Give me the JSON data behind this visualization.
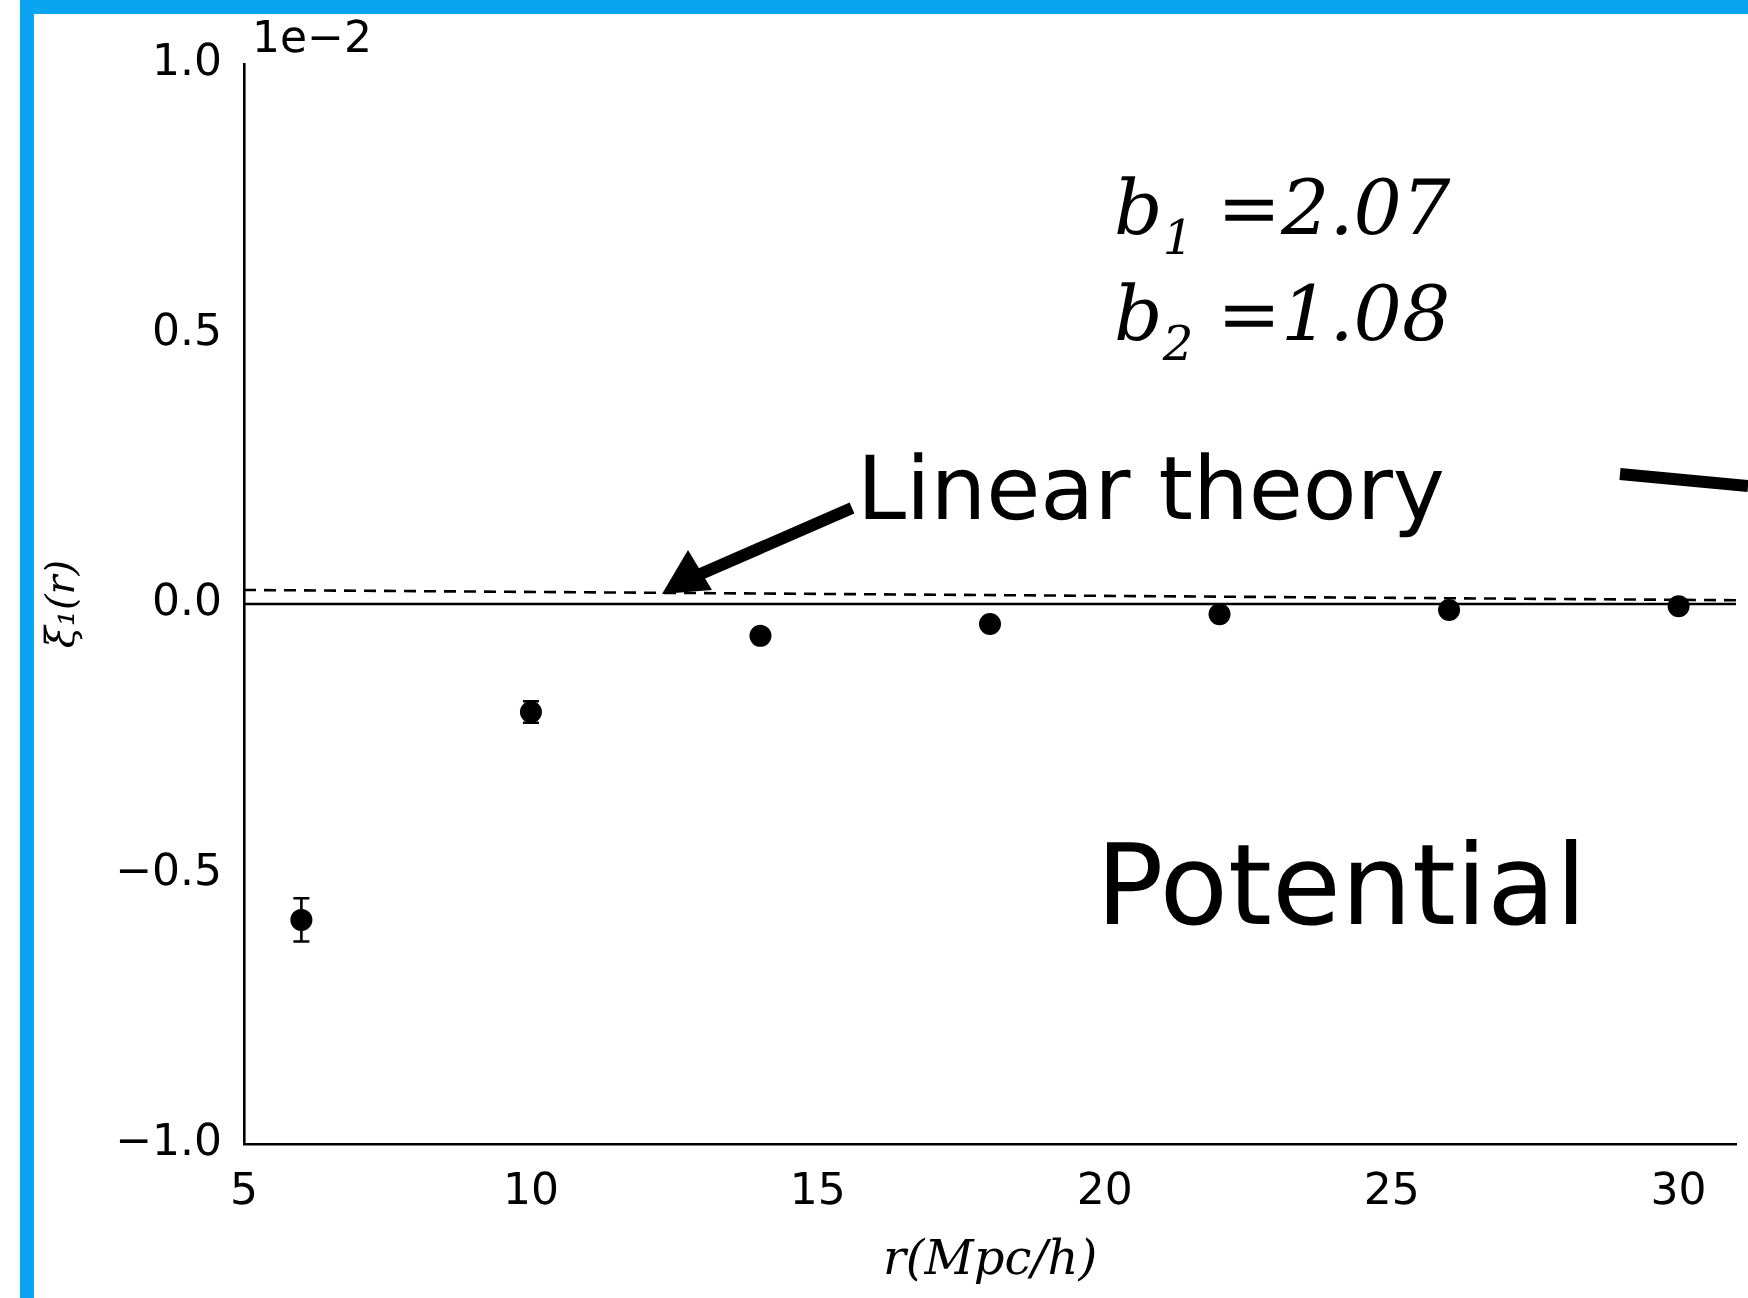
{
  "chart_data": {
    "type": "scatter",
    "xlabel": "r(Mpc/h)",
    "ylabel": "ξ₁(r)",
    "x": [
      6,
      10,
      14,
      18,
      22,
      26,
      30
    ],
    "series": [
      {
        "color": "#000000",
        "values": [
          -0.585,
          -0.2,
          -0.059,
          -0.037,
          -0.019,
          -0.011,
          -0.004
        ],
        "errors": [
          0.04,
          0.02,
          null,
          null,
          null,
          null,
          null
        ]
      },
      {
        "type": "line",
        "color": "#000000",
        "line_style": "dashed",
        "marker": "none",
        "x": [
          5,
          31
        ],
        "values": [
          0.026,
          0.007
        ]
      }
    ],
    "marker": "circle",
    "xlim": [
      5,
      31
    ],
    "xticks": [
      5,
      10,
      15,
      20,
      25,
      30
    ],
    "ylim": [
      -1.0,
      1.0
    ],
    "yticks": [
      {
        "value": -1,
        "label": "−1.0"
      },
      {
        "value": -0.5,
        "label": "−0.5"
      },
      {
        "value": 0,
        "label": "0.0"
      },
      {
        "value": 0.5,
        "label": "0.5"
      },
      {
        "value": 1,
        "label": "1.0"
      }
    ],
    "ref_lines": [
      {
        "axis": "y",
        "value": 0,
        "color": "#000000",
        "line_style": "solid"
      }
    ],
    "annotations": [
      "1e−2",
      "b$_{1}$ =2.07",
      "b$_{2}$ =1.08",
      {
        "text": "Linear theory",
        "x": 12.3,
        "y": 0.02
      },
      "Potential"
    ],
    "grid": false,
    "legend": false
  }
}
